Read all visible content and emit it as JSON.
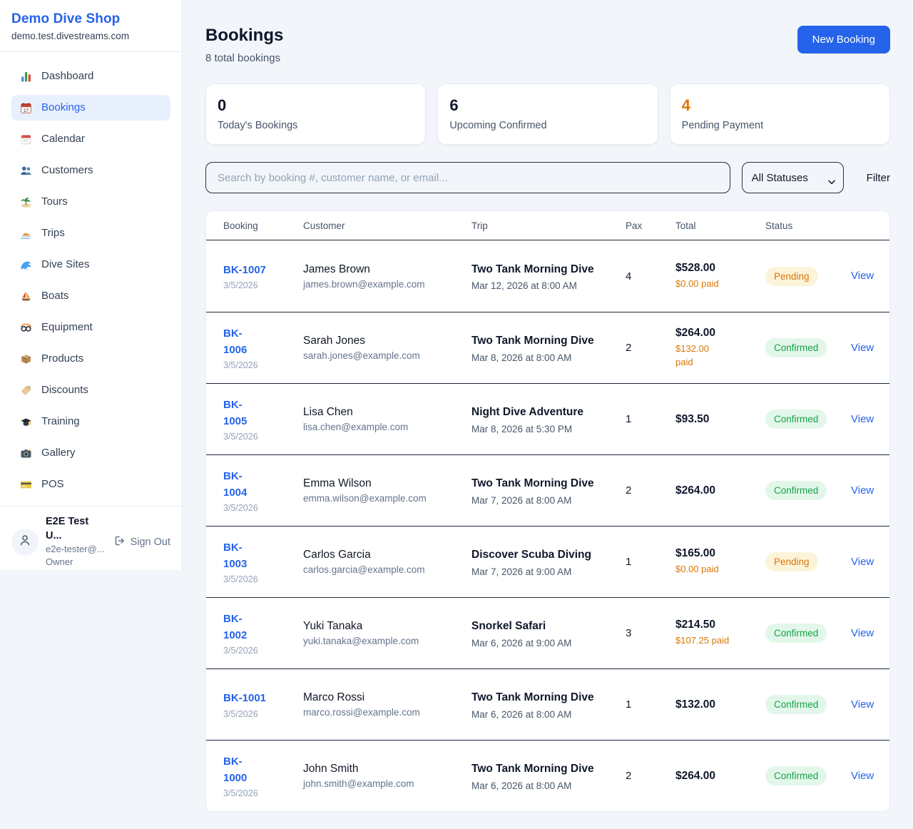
{
  "sidebar": {
    "brand": {
      "name": "Demo Dive Shop",
      "domain": "demo.test.divestreams.com"
    },
    "nav": [
      {
        "id": "dashboard",
        "label": "Dashboard",
        "active": false
      },
      {
        "id": "bookings",
        "label": "Bookings",
        "active": true
      },
      {
        "id": "calendar",
        "label": "Calendar",
        "active": false
      },
      {
        "id": "customers",
        "label": "Customers",
        "active": false
      },
      {
        "id": "tours",
        "label": "Tours",
        "active": false
      },
      {
        "id": "trips",
        "label": "Trips",
        "active": false
      },
      {
        "id": "dive-sites",
        "label": "Dive Sites",
        "active": false
      },
      {
        "id": "boats",
        "label": "Boats",
        "active": false
      },
      {
        "id": "equipment",
        "label": "Equipment",
        "active": false
      },
      {
        "id": "products",
        "label": "Products",
        "active": false
      },
      {
        "id": "discounts",
        "label": "Discounts",
        "active": false
      },
      {
        "id": "training",
        "label": "Training",
        "active": false
      },
      {
        "id": "gallery",
        "label": "Gallery",
        "active": false
      },
      {
        "id": "pos",
        "label": "POS",
        "active": false
      }
    ],
    "user": {
      "name": "E2E Test U...",
      "email": "e2e-tester@...",
      "role": "Owner",
      "sign_out_label": "Sign Out"
    }
  },
  "header": {
    "title": "Bookings",
    "subtitle": "8 total bookings",
    "new_booking_label": "New Booking"
  },
  "stats": [
    {
      "value": "0",
      "label": "Today's Bookings",
      "value_color": "#0f172a"
    },
    {
      "value": "6",
      "label": "Upcoming Confirmed",
      "value_color": "#0f172a"
    },
    {
      "value": "4",
      "label": "Pending Payment",
      "value_color": "#d97706"
    }
  ],
  "filters": {
    "search_placeholder": "Search by booking #, customer name, or email...",
    "status_selected": "All Statuses",
    "filter_label": "Filter"
  },
  "table": {
    "columns": [
      "Booking",
      "Customer",
      "Trip",
      "Pax",
      "Total",
      "Status"
    ],
    "view_label": "View",
    "rows": [
      {
        "booking": "BK-1007",
        "date": "3/5/2026",
        "customer": "James Brown",
        "email": "james.brown@example.com",
        "trip": "Two Tank Morning Dive",
        "trip_date": "Mar 12, 2026 at 8:00 AM",
        "pax": "4",
        "total": "$528.00",
        "paid": "$0.00 paid",
        "status": "Pending"
      },
      {
        "booking": "BK-1006",
        "date": "3/5/2026",
        "customer": "Sarah Jones",
        "email": "sarah.jones@example.com",
        "trip": "Two Tank Morning Dive",
        "trip_date": "Mar 8, 2026 at 8:00 AM",
        "pax": "2",
        "total": "$264.00",
        "paid": "$132.00 paid",
        "status": "Confirmed"
      },
      {
        "booking": "BK-1005",
        "date": "3/5/2026",
        "customer": "Lisa Chen",
        "email": "lisa.chen@example.com",
        "trip": "Night Dive Adventure",
        "trip_date": "Mar 8, 2026 at 5:30 PM",
        "pax": "1",
        "total": "$93.50",
        "paid": "",
        "status": "Confirmed"
      },
      {
        "booking": "BK-1004",
        "date": "3/5/2026",
        "customer": "Emma Wilson",
        "email": "emma.wilson@example.com",
        "trip": "Two Tank Morning Dive",
        "trip_date": "Mar 7, 2026 at 8:00 AM",
        "pax": "2",
        "total": "$264.00",
        "paid": "",
        "status": "Confirmed"
      },
      {
        "booking": "BK-1003",
        "date": "3/5/2026",
        "customer": "Carlos Garcia",
        "email": "carlos.garcia@example.com",
        "trip": "Discover Scuba Diving",
        "trip_date": "Mar 7, 2026 at 9:00 AM",
        "pax": "1",
        "total": "$165.00",
        "paid": "$0.00 paid",
        "status": "Pending"
      },
      {
        "booking": "BK-1002",
        "date": "3/5/2026",
        "customer": "Yuki Tanaka",
        "email": "yuki.tanaka@example.com",
        "trip": "Snorkel Safari",
        "trip_date": "Mar 6, 2026 at 9:00 AM",
        "pax": "3",
        "total": "$214.50",
        "paid": "$107.25 paid",
        "status": "Confirmed"
      },
      {
        "booking": "BK-1001",
        "date": "3/5/2026",
        "customer": "Marco Rossi",
        "email": "marco.rossi@example.com",
        "trip": "Two Tank Morning Dive",
        "trip_date": "Mar 6, 2026 at 8:00 AM",
        "pax": "1",
        "total": "$132.00",
        "paid": "",
        "status": "Confirmed"
      },
      {
        "booking": "BK-1000",
        "date": "3/5/2026",
        "customer": "John Smith",
        "email": "john.smith@example.com",
        "trip": "Two Tank Morning Dive",
        "trip_date": "Mar 6, 2026 at 8:00 AM",
        "pax": "2",
        "total": "$264.00",
        "paid": "",
        "status": "Confirmed"
      }
    ]
  },
  "colors": {
    "accent": "#2563eb",
    "page_bg": "#f2f5f9",
    "row_divider": "#1e293b",
    "status_styles": {
      "Pending": {
        "bg": "#fcf4d9",
        "fg": "#d97706"
      },
      "Confirmed": {
        "bg": "#e2f7e9",
        "fg": "#16a34a"
      }
    },
    "paid_text": "#d97706"
  }
}
